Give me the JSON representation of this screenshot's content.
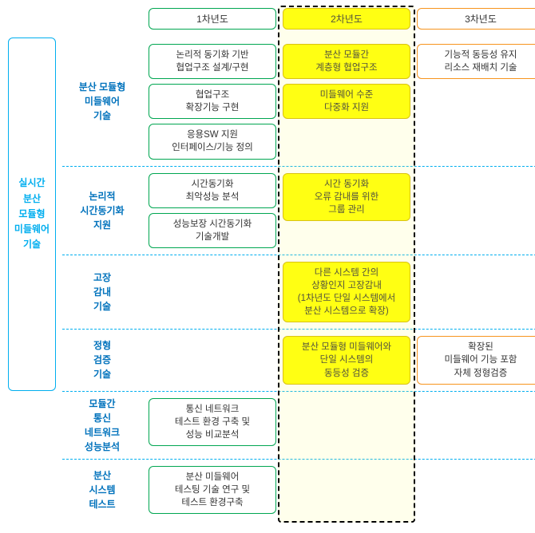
{
  "type": "roadmap-diagram",
  "colors": {
    "year1_border": "#00a651",
    "year2_border": "#d4b800",
    "year2_fill": "#ffff00",
    "year3_border": "#f7941d",
    "blue": "#00aeef",
    "row_text": "#0072bc",
    "dash_black": "#000000",
    "bg": "#ffffff"
  },
  "headers": {
    "y1": "1차년도",
    "y2": "2차년도",
    "y3": "3차년도"
  },
  "left_label": "실시간\n분산\n모듈형\n미들웨어\n기술",
  "rows": [
    {
      "label": "분산 모듈형\n미들웨어\n기술",
      "y1": [
        "논리적 동기화 기반\n협업구조 설계/구현",
        "협업구조\n확장기능 구현",
        "응용SW 지원\n인터페이스/기능 정의"
      ],
      "y2": [
        "분산 모듈간\n계층형 협업구조",
        "미들웨어 수준\n다중화 지원"
      ],
      "y3": [
        "기능적 동등성 유지\n리소스 재배치 기술"
      ]
    },
    {
      "label": "논리적\n시간동기화\n지원",
      "y1": [
        "시간동기화\n최악성능 분석",
        "성능보장 시간동기화\n기술개발"
      ],
      "y2": [
        "시간 동기화\n오류 감내를 위한\n그룹 관리"
      ],
      "y3": []
    },
    {
      "label": "고장\n감내\n기술",
      "y1": [],
      "y2": [
        "다른 시스템 간의\n상황인지 고장감내\n(1차년도 단일 시스템에서\n분산 시스템으로 확장)"
      ],
      "y3": []
    },
    {
      "label": "정형\n검증\n기술",
      "y1": [],
      "y2": [
        "분산 모듈형 미들웨어와\n단일 시스템의\n동등성 검증"
      ],
      "y3": [
        "확장된\n미들웨어 기능 포함\n자체 정형검증"
      ]
    },
    {
      "label": "모듈간\n통신\n네트워크\n성능분석",
      "y1": [
        "통신 네트워크\n테스트 환경 구축 및\n성능 비교분석"
      ],
      "y2": [],
      "y3": []
    },
    {
      "label": "분산\n시스템\n테스트",
      "y1": [
        "분산 미들웨어\n테스팅 기술 연구 및\n테스트 환경구축"
      ],
      "y2": [],
      "y3": []
    }
  ]
}
